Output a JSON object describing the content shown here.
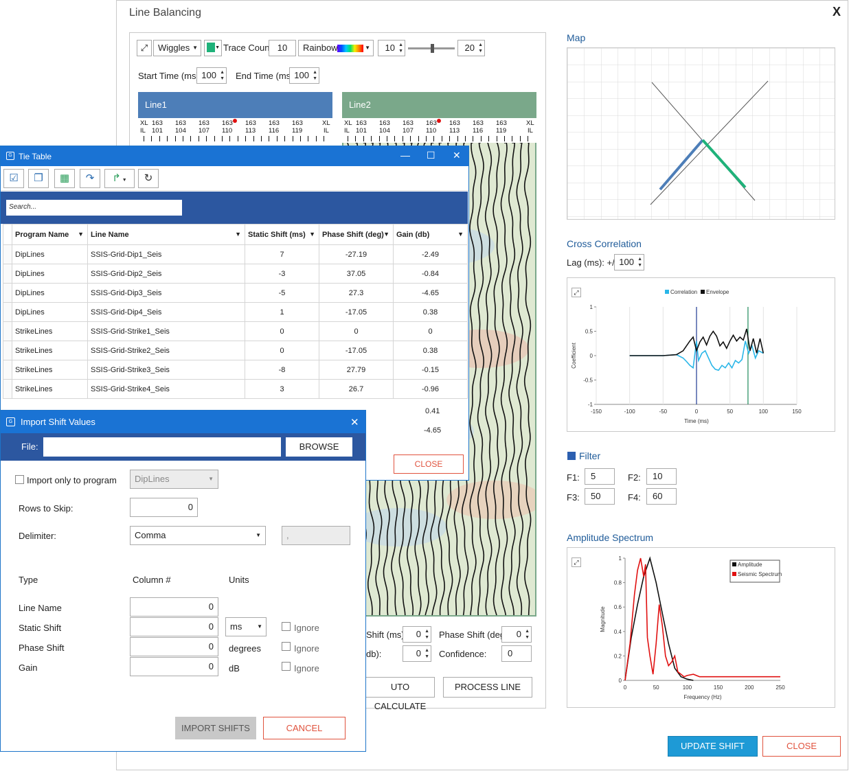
{
  "line_balancing": {
    "title": "Line Balancing",
    "close_glyph": "X",
    "toolbar": {
      "display_mode": "Wiggles",
      "trace_count_label": "Trace Count:",
      "trace_count": "10",
      "colormap": "Rainbow",
      "range_min": "10",
      "range_max": "20",
      "start_time_label": "Start Time (ms):",
      "start_time": "100",
      "end_time_label": "End Time (ms):",
      "end_time": "100"
    },
    "line1": {
      "name": "Line1",
      "xl_label": "XL",
      "il_label": "IL",
      "xl_values": [
        "163",
        "163",
        "163",
        "163",
        "163",
        "163",
        "163"
      ],
      "il_values": [
        "101",
        "104",
        "107",
        "110",
        "113",
        "116",
        "119"
      ]
    },
    "line2": {
      "name": "Line2",
      "xl_label": "XL",
      "il_label": "IL",
      "xl_values": [
        "163",
        "163",
        "163",
        "163",
        "163",
        "163",
        "163"
      ],
      "il_values": [
        "101",
        "104",
        "107",
        "110",
        "113",
        "116",
        "119"
      ]
    },
    "bottom": {
      "static_shift_label": "Shift (ms):",
      "static_shift": "0",
      "phase_shift_label": "Phase Shift (deg):",
      "phase_shift": "0",
      "gain_label": "db):",
      "gain": "0",
      "confidence_label": "Confidence:",
      "confidence": "0",
      "auto_calc_label": "UTO CALCULATE",
      "process_line_label": "PROCESS LINE"
    },
    "map": {
      "title": "Map"
    },
    "cross_correlation": {
      "title": "Cross Correlation",
      "lag_label": "Lag (ms): +/-",
      "lag": "100",
      "chart_data": {
        "type": "line",
        "title": "",
        "xlabel": "Time (ms)",
        "ylabel": "Coefficient",
        "xlim": [
          -150,
          150
        ],
        "ylim": [
          -1,
          1
        ],
        "x_ticks": [
          "-150",
          "-100",
          "-50",
          "0",
          "50",
          "100",
          "150"
        ],
        "y_ticks": [
          "1",
          "0.5",
          "0",
          "-0.5",
          "-1"
        ],
        "legend": [
          "Correlation",
          "Envelope"
        ],
        "series": [
          {
            "name": "Correlation",
            "color": "#29b6e8",
            "x": [
              -100,
              -50,
              -30,
              -20,
              -15,
              -10,
              -5,
              0,
              3,
              8,
              13,
              18,
              23,
              28,
              33,
              38,
              43,
              48,
              53,
              58,
              63,
              68,
              73,
              78,
              83,
              88,
              93,
              100
            ],
            "y": [
              0,
              0,
              0.02,
              -0.05,
              -0.12,
              -0.2,
              -0.25,
              0.3,
              -0.1,
              0.05,
              0.1,
              -0.05,
              -0.2,
              -0.28,
              -0.3,
              -0.2,
              -0.25,
              -0.15,
              -0.25,
              -0.1,
              -0.15,
              -0.08,
              0.3,
              0.05,
              0.2,
              -0.05,
              0.1,
              0.05
            ]
          },
          {
            "name": "Envelope",
            "color": "#111111",
            "x": [
              -100,
              -50,
              -30,
              -20,
              -10,
              -5,
              0,
              5,
              10,
              15,
              20,
              25,
              30,
              35,
              40,
              45,
              50,
              55,
              60,
              65,
              70,
              75,
              80,
              85,
              90,
              95,
              100
            ],
            "y": [
              0,
              0,
              0.02,
              0.1,
              0.3,
              0.38,
              0.1,
              0.28,
              0.38,
              0.22,
              0.4,
              0.5,
              0.4,
              0.2,
              0.28,
              0.15,
              0.3,
              0.42,
              0.3,
              0.38,
              0.32,
              0.55,
              0.1,
              0.35,
              0.05,
              0.35,
              0.05
            ]
          }
        ],
        "vlines": [
          {
            "x": 0,
            "color": "#1f3a93"
          },
          {
            "x": 77,
            "color": "#1f8a5a"
          }
        ]
      }
    },
    "filter": {
      "title": "Filter",
      "f1_label": "F1:",
      "f1": "5",
      "f2_label": "F2:",
      "f2": "10",
      "f3_label": "F3:",
      "f3": "50",
      "f4_label": "F4:",
      "f4": "60"
    },
    "amplitude_spectrum": {
      "title": "Amplitude Spectrum",
      "chart_data": {
        "type": "line",
        "title": "",
        "xlabel": "Frequency (Hz)",
        "ylabel": "Magnitude",
        "xlim": [
          0,
          250
        ],
        "ylim": [
          0,
          1
        ],
        "x_ticks": [
          "0",
          "50",
          "100",
          "150",
          "200",
          "250"
        ],
        "y_ticks": [
          "1",
          "0.8",
          "0.6",
          "0.4",
          "0.2",
          "0"
        ],
        "legend": [
          "Amplitude",
          "Seismic Spectrum"
        ],
        "series": [
          {
            "name": "Amplitude",
            "color": "#111111",
            "x": [
              0,
              10,
              20,
              30,
              40,
              50,
              60,
              70,
              80,
              90,
              100,
              110
            ],
            "y": [
              0,
              0.35,
              0.62,
              0.85,
              1.0,
              0.8,
              0.55,
              0.3,
              0.1,
              0.03,
              0.01,
              0
            ]
          },
          {
            "name": "Seismic Spectrum",
            "color": "#e01010",
            "x": [
              0,
              8,
              15,
              20,
              25,
              30,
              33,
              36,
              40,
              45,
              50,
              55,
              60,
              65,
              70,
              75,
              80,
              85,
              90,
              95,
              100,
              110,
              120,
              140,
              160,
              180,
              200,
              225,
              250
            ],
            "y": [
              0,
              0.3,
              0.7,
              0.9,
              1.0,
              0.85,
              0.95,
              0.35,
              0.2,
              0.05,
              0.3,
              0.62,
              0.45,
              0.2,
              0.12,
              0.15,
              0.2,
              0.07,
              0.05,
              0.03,
              0.04,
              0.05,
              0.03,
              0.03,
              0.03,
              0.03,
              0.03,
              0.03,
              0.03
            ]
          }
        ]
      }
    },
    "update_shift_table_label": "UPDATE SHIFT TABLE",
    "close_label": "CLOSE"
  },
  "tie_table": {
    "title": "Tie Table",
    "search_placeholder": "Search...",
    "columns": [
      "Program Name",
      "Line Name",
      "Static Shift (ms)",
      "Phase Shift (deg)",
      "Gain (db)"
    ],
    "rows": [
      [
        "DipLines",
        "SSIS-Grid-Dip1_Seis",
        "7",
        "-27.19",
        "-2.49"
      ],
      [
        "DipLines",
        "SSIS-Grid-Dip2_Seis",
        "-3",
        "37.05",
        "-0.84"
      ],
      [
        "DipLines",
        "SSIS-Grid-Dip3_Seis",
        "-5",
        "27.3",
        "-4.65"
      ],
      [
        "DipLines",
        "SSIS-Grid-Dip4_Seis",
        "1",
        "-17.05",
        "0.38"
      ],
      [
        "StrikeLines",
        "SSIS-Grid-Strike1_Seis",
        "0",
        "0",
        "0"
      ],
      [
        "StrikeLines",
        "SSIS-Grid-Strike2_Seis",
        "0",
        "-17.05",
        "0.38"
      ],
      [
        "StrikeLines",
        "SSIS-Grid-Strike3_Seis",
        "-8",
        "27.79",
        "-0.15"
      ],
      [
        "StrikeLines",
        "SSIS-Grid-Strike4_Seis",
        "3",
        "26.7",
        "-0.96"
      ]
    ],
    "partial_gain_1": "0.41",
    "partial_gain_2": "-4.65",
    "close_label": "CLOSE"
  },
  "import_shift_values": {
    "title": "Import Shift Values",
    "file_label": "File:",
    "file_value": "",
    "browse_label": "BROWSE",
    "import_only_label": "Import only to program",
    "program_value": "DipLines",
    "rows_to_skip_label": "Rows to Skip:",
    "rows_to_skip": "0",
    "delimiter_label": "Delimiter:",
    "delimiter_value": "Comma",
    "custom_delim": ",",
    "type_header": "Type",
    "column_header": "Column #",
    "units_header": "Units",
    "line_name_label": "Line Name",
    "line_name_col": "0",
    "static_shift_label": "Static Shift",
    "static_shift_col": "0",
    "static_units": "ms",
    "phase_shift_label": "Phase Shift",
    "phase_shift_col": "0",
    "phase_units": "degrees",
    "gain_label": "Gain",
    "gain_col": "0",
    "gain_units": "dB",
    "ignore_label": "Ignore",
    "import_label": "IMPORT SHIFTS",
    "cancel_label": "CANCEL"
  }
}
